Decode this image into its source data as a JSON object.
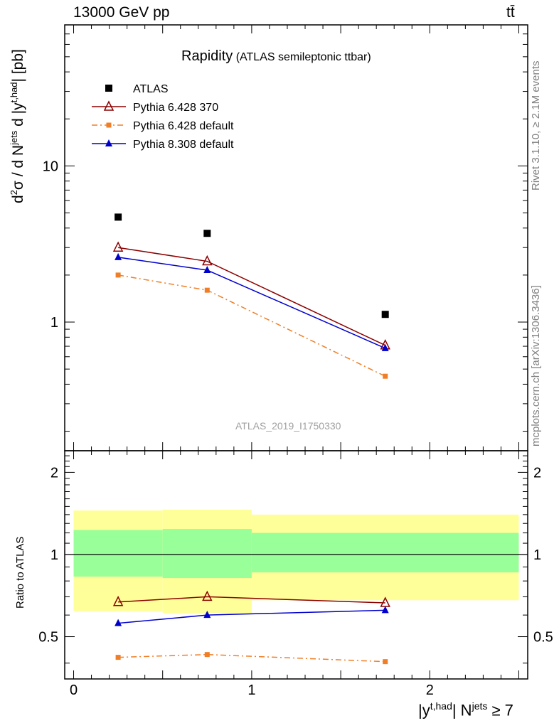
{
  "header": {
    "energy_label": "13000 GeV pp",
    "process_label": "tt̄"
  },
  "side_labels": {
    "rivet": "Rivet 3.1.10, ≥ 2.1M events",
    "mcplots": "mcplots.cern.ch [arXiv:1306.3436]"
  },
  "chart_data": [
    {
      "type": "scatter",
      "title": "Rapidity",
      "subtitle": "(ATLAS semileptonic ttbar)",
      "watermark": "ATLAS_2019_I1750330",
      "ylabel": "d²σ / d N^jets d |y^t,had| [pb]",
      "yscale": "log",
      "xlim": [
        -0.05,
        2.55
      ],
      "ylim": [
        0.15,
        80
      ],
      "ytick_labels": [
        "1",
        "10"
      ],
      "ytick_values": [
        1,
        10
      ],
      "legend_position": "top-left",
      "x": [
        0.25,
        0.75,
        1.75
      ],
      "series": [
        {
          "name": "ATLAS",
          "values": [
            4.7,
            3.7,
            1.12
          ],
          "color": "#000000",
          "marker": "square"
        },
        {
          "name": "Pythia 6.428 370",
          "values": [
            3.0,
            2.45,
            0.71
          ],
          "color": "#8b0000",
          "marker": "open-triangle",
          "line": "solid"
        },
        {
          "name": "Pythia 6.428 default",
          "values": [
            2.0,
            1.6,
            0.45
          ],
          "color": "#f07e26",
          "marker": "square",
          "line": "dash-dot"
        },
        {
          "name": "Pythia 8.308 default",
          "values": [
            2.6,
            2.15,
            0.68
          ],
          "color": "#0000cc",
          "marker": "triangle",
          "line": "solid"
        }
      ]
    },
    {
      "type": "line",
      "ylabel": "Ratio to ATLAS",
      "xlabel": "|y^t,had| N^jets ≥ 7",
      "xlim": [
        -0.05,
        2.55
      ],
      "ylim": [
        0.35,
        2.4
      ],
      "xtick_labels": [
        "0",
        "1",
        "2"
      ],
      "xtick_values": [
        0,
        1,
        2
      ],
      "ytick_labels": [
        "0.5",
        "1",
        "2"
      ],
      "ytick_values": [
        0.5,
        1,
        2
      ],
      "uncertainty_bands": [
        {
          "x_low": 0.0,
          "x_high": 0.5,
          "inner": [
            0.83,
            1.23
          ],
          "outer": [
            0.62,
            1.45
          ]
        },
        {
          "x_low": 0.5,
          "x_high": 1.0,
          "inner": [
            0.82,
            1.24
          ],
          "outer": [
            0.61,
            1.46
          ]
        },
        {
          "x_low": 1.0,
          "x_high": 2.5,
          "inner": [
            0.86,
            1.2
          ],
          "outer": [
            0.68,
            1.4
          ]
        }
      ],
      "band_colors": {
        "inner": "#99ff99",
        "outer": "#ffff99"
      },
      "x": [
        0.25,
        0.75,
        1.75
      ],
      "series": [
        {
          "name": "Pythia 6.428 370",
          "values": [
            0.67,
            0.7,
            0.665
          ],
          "color": "#8b0000",
          "marker": "open-triangle",
          "line": "solid"
        },
        {
          "name": "Pythia 6.428 default",
          "values": [
            0.42,
            0.43,
            0.405
          ],
          "color": "#f07e26",
          "marker": "square",
          "line": "dash-dot"
        },
        {
          "name": "Pythia 8.308 default",
          "values": [
            0.56,
            0.6,
            0.625
          ],
          "color": "#0000cc",
          "marker": "triangle",
          "line": "solid"
        }
      ]
    }
  ]
}
